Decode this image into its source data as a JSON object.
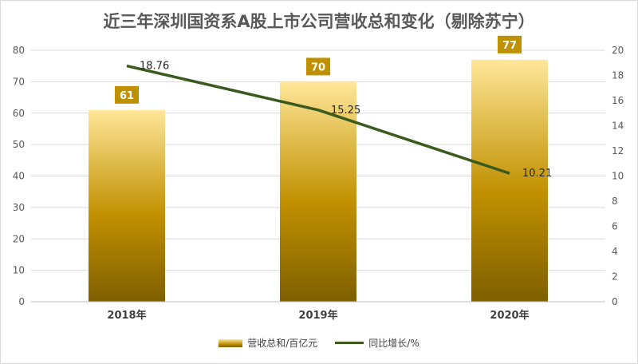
{
  "chart_data": {
    "type": "bar",
    "title": "近三年深圳国资系A股上市公司营收总和变化（剔除苏宁）",
    "categories": [
      "2018年",
      "2019年",
      "2020年"
    ],
    "series": [
      {
        "name": "营收总和/百亿元",
        "type": "bar",
        "axis": "left",
        "values": [
          61,
          70,
          77
        ],
        "data_labels": [
          "61",
          "70",
          "77"
        ],
        "color": "#bf9000"
      },
      {
        "name": "同比增长/%",
        "type": "line",
        "axis": "right",
        "values": [
          18.76,
          15.25,
          10.21
        ],
        "data_labels": [
          "18.76",
          "15.25",
          "10.21"
        ],
        "color": "#3a5a1e"
      }
    ],
    "ylim_left": [
      0,
      80
    ],
    "ylim_right": [
      0,
      20
    ],
    "yticks_left": [
      "0",
      "10",
      "20",
      "30",
      "40",
      "50",
      "60",
      "70",
      "80"
    ],
    "yticks_right": [
      "0",
      "2",
      "4",
      "6",
      "8",
      "10",
      "12",
      "14",
      "16",
      "18",
      "20"
    ],
    "grid": true,
    "legend_position": "bottom"
  },
  "colors": {
    "bar_top": "#ffe699",
    "bar_mid": "#bf9000",
    "bar_bottom": "#7f6000",
    "label_box": "#bf9000",
    "line": "#3a5a1e",
    "grid": "#d9d9d9",
    "text": "#595959"
  }
}
